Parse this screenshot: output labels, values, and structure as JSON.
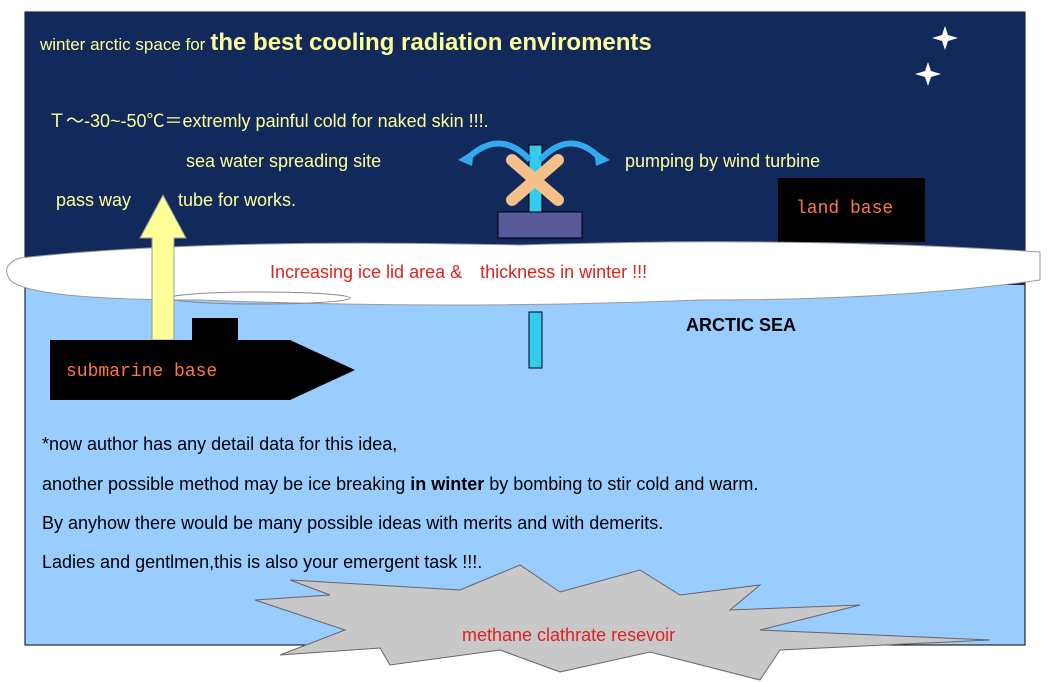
{
  "diagram": {
    "title_prefix": "winter arctic space for",
    "title_main": "the best cooling radiation enviroments",
    "temperature": "Ｔ～-30~-50℃＝extremly painful cold for naked skin !!!.",
    "spreading": "sea water spreading site",
    "pumping": "pumping by wind turbine",
    "pass_way": "pass way",
    "tube": "tube for works.",
    "land_base": "land base",
    "ice_lid": "Increasing ice lid area &　thickness in winter !!!",
    "sea": "ARCTIC SEA",
    "submarine": "submarine base",
    "notes": {
      "line1": "*now author has any detail data for this idea,",
      "line2_a": "another possible method may be ice breaking",
      "line2_b": "in winter",
      "line2_c": "by bombing to stir cold and warm.",
      "line3": "By anyhow there would be many possible ideas with merits and with demerits.",
      "line4": "Ladies and gentlmen,this is also your emergent task !!!."
    },
    "methane": "methane clathrate resevoir"
  }
}
